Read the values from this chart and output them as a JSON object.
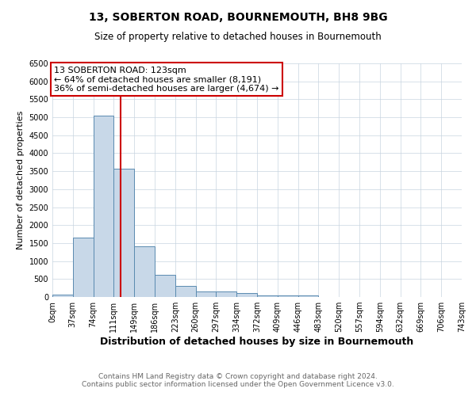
{
  "title": "13, SOBERTON ROAD, BOURNEMOUTH, BH8 9BG",
  "subtitle": "Size of property relative to detached houses in Bournemouth",
  "xlabel": "Distribution of detached houses by size in Bournemouth",
  "ylabel": "Number of detached properties",
  "bar_color": "#c8d8e8",
  "bar_edge_color": "#5a8ab0",
  "bin_edges": [
    0,
    37,
    74,
    111,
    148,
    185,
    222,
    259,
    296,
    333,
    370,
    407,
    444,
    481,
    518,
    555,
    592,
    629,
    666,
    703,
    740
  ],
  "bin_labels": [
    "0sqm",
    "37sqm",
    "74sqm",
    "111sqm",
    "149sqm",
    "186sqm",
    "223sqm",
    "260sqm",
    "297sqm",
    "334sqm",
    "372sqm",
    "409sqm",
    "446sqm",
    "483sqm",
    "520sqm",
    "557sqm",
    "594sqm",
    "632sqm",
    "669sqm",
    "706sqm",
    "743sqm"
  ],
  "counts": [
    75,
    1650,
    5050,
    3580,
    1420,
    610,
    300,
    155,
    155,
    100,
    55,
    35,
    55,
    0,
    0,
    0,
    0,
    0,
    0,
    0
  ],
  "vline_x": 123,
  "vline_color": "#cc0000",
  "ylim": [
    0,
    6500
  ],
  "annotation_line1": "13 SOBERTON ROAD: 123sqm",
  "annotation_line2": "← 64% of detached houses are smaller (8,191)",
  "annotation_line3": "36% of semi-detached houses are larger (4,674) →",
  "annotation_box_color": "#ffffff",
  "annotation_box_edge": "#cc0000",
  "footer_line1": "Contains HM Land Registry data © Crown copyright and database right 2024.",
  "footer_line2": "Contains public sector information licensed under the Open Government Licence v3.0.",
  "background_color": "#ffffff",
  "grid_color": "#c8d4e0",
  "title_fontsize": 10,
  "subtitle_fontsize": 8.5,
  "xlabel_fontsize": 9,
  "ylabel_fontsize": 8,
  "tick_fontsize": 7,
  "footer_fontsize": 6.5,
  "annotation_fontsize": 8
}
